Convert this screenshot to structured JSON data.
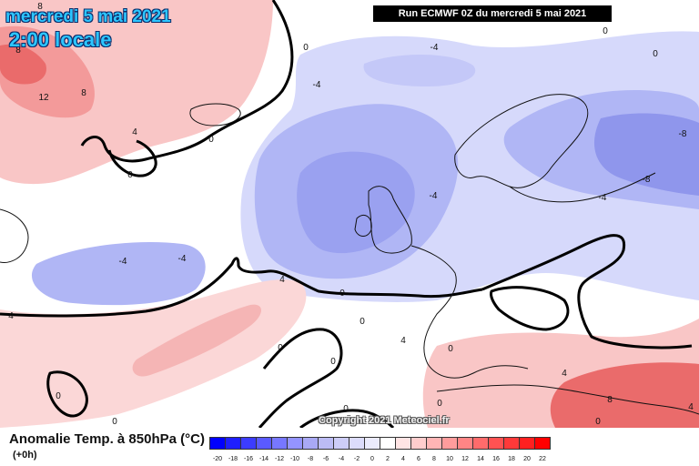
{
  "header": {
    "date_label": "mercredi 5 mai 2021",
    "time_label": "2:00 locale",
    "run_label": "Run ECMWF 0Z du mercredi 5 mai 2021"
  },
  "footer": {
    "parameter_label": "Anomalie Temp. à 850hPa (°C)",
    "lead_label": "(+0h)",
    "copyright": "Copyright 2021 Meteociel.fr"
  },
  "legend": {
    "colors": [
      "#0000ff",
      "#1f1fff",
      "#3c3cff",
      "#5a5aff",
      "#7777ff",
      "#9494ff",
      "#a9a9f5",
      "#bcbcf5",
      "#cdcdf8",
      "#dcdcfb",
      "#ebebfd",
      "#ffffff",
      "#ffe4e4",
      "#ffcdcd",
      "#ffb5b5",
      "#ff9c9c",
      "#ff8585",
      "#ff6b6b",
      "#ff5252",
      "#ff3939",
      "#ff2020",
      "#ff0000"
    ],
    "ticks": [
      "-20",
      "-18",
      "-16",
      "-14",
      "-12",
      "-10",
      "-8",
      "-6",
      "-4",
      "-2",
      "0",
      "2",
      "4",
      "6",
      "8",
      "10",
      "12",
      "14",
      "16",
      "18",
      "20",
      "22"
    ]
  },
  "map": {
    "contour_labels": [
      "8",
      "8",
      "12",
      "8",
      "4",
      "0",
      "0",
      "0",
      "-4",
      "-4",
      "-4",
      "-4",
      "-4",
      "-8",
      "-8",
      "-4",
      "0",
      "0",
      "4",
      "4",
      "4",
      "0",
      "0",
      "0",
      "0",
      "0",
      "0",
      "0",
      "4",
      "8",
      "4",
      "0",
      "0",
      "0"
    ],
    "colors": {
      "cold": "#b0b6f5",
      "cold_mid": "#9aa1f0",
      "cold_strong": "#7f86e8",
      "warm": "#f9c6c6",
      "warm_mid": "#f39a9a",
      "warm_strong": "#ea6b6b",
      "neutral": "#ffffff"
    }
  }
}
